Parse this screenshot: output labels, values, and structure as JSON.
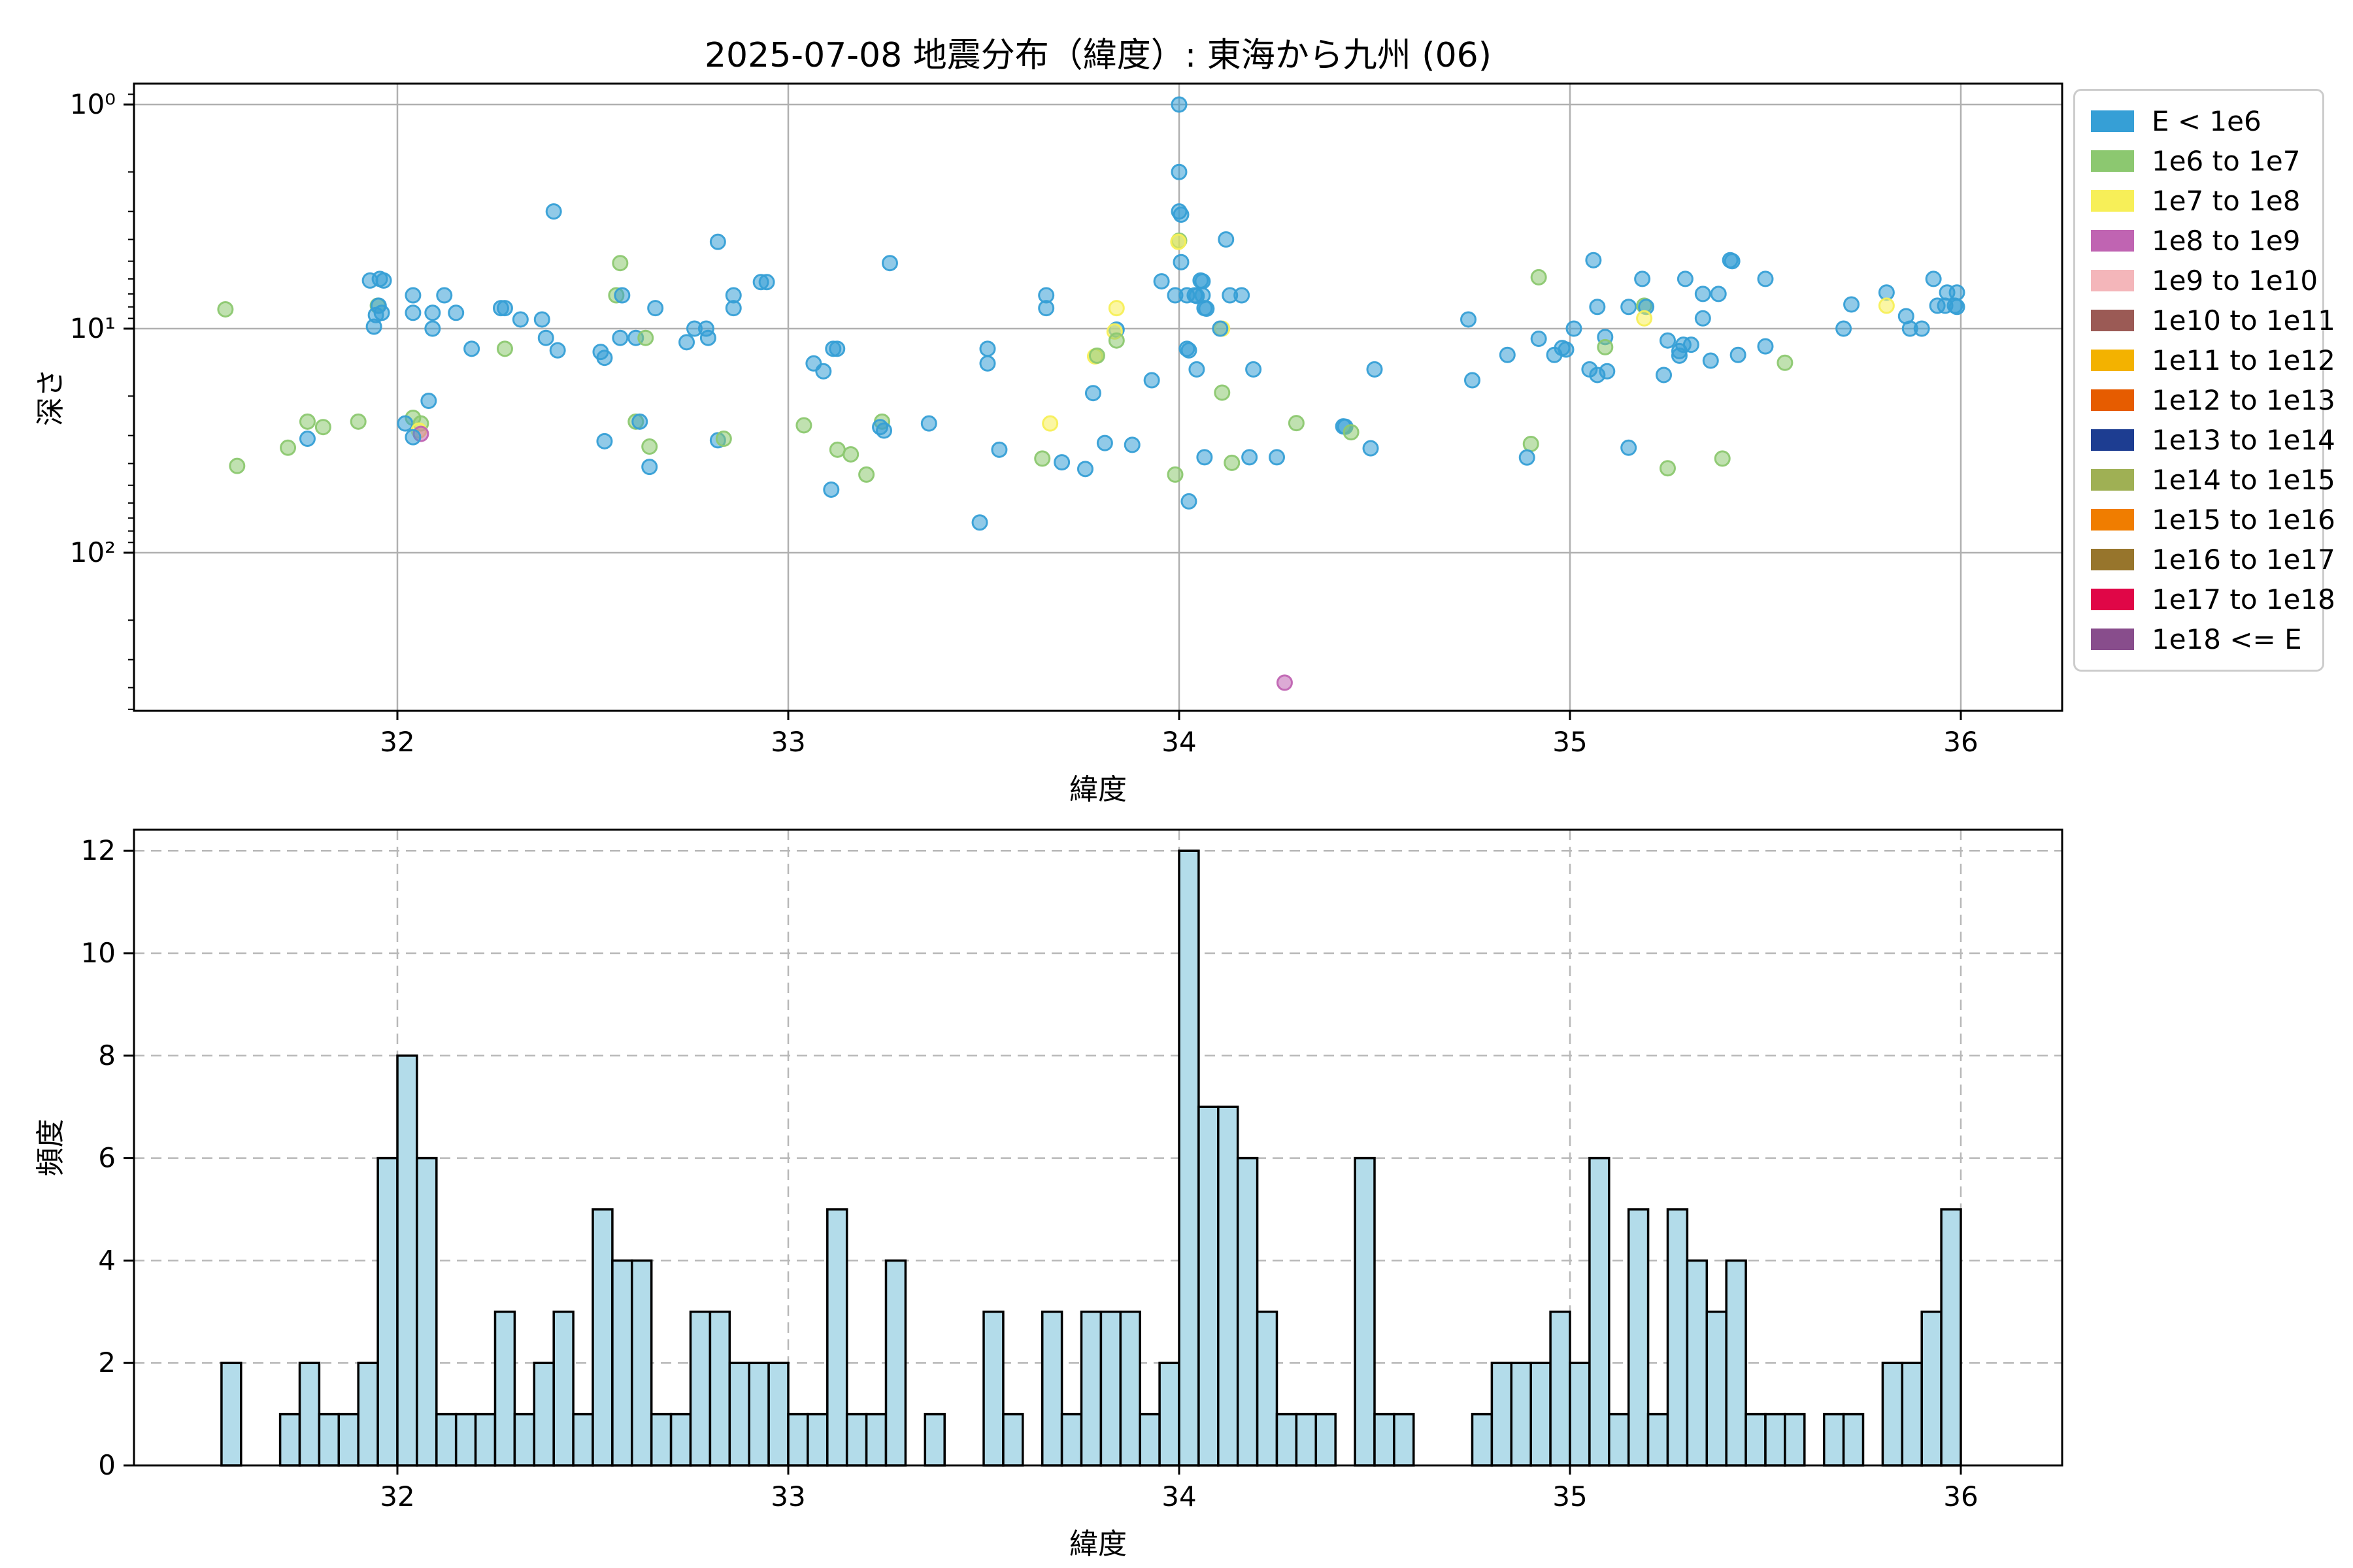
{
  "title": "2025-07-08 地震分布（緯度）: 東海から九州 (06)",
  "legend": {
    "entries": [
      {
        "label": "E < 1e6",
        "color": "#369fd6"
      },
      {
        "label": "1e6 to 1e7",
        "color": "#8cc870"
      },
      {
        "label": "1e7 to 1e8",
        "color": "#f7ef58"
      },
      {
        "label": "1e8 to 1e9",
        "color": "#c064b2"
      },
      {
        "label": "1e9 to 1e10",
        "color": "#f4b6ba"
      },
      {
        "label": "1e10 to 1e11",
        "color": "#9b5a55"
      },
      {
        "label": "1e11 to 1e12",
        "color": "#f3b200"
      },
      {
        "label": "1e12 to 1e13",
        "color": "#e65c00"
      },
      {
        "label": "1e13 to 1e14",
        "color": "#1d3d91"
      },
      {
        "label": "1e14 to 1e15",
        "color": "#9fb054"
      },
      {
        "label": "1e15 to 1e16",
        "color": "#f07d00"
      },
      {
        "label": "1e16 to 1e17",
        "color": "#97752c"
      },
      {
        "label": "1e17 to 1e18",
        "color": "#e00647"
      },
      {
        "label": "1e18 <= E",
        "color": "#884d8c"
      }
    ]
  },
  "chart_data": [
    {
      "type": "scatter",
      "xlabel": "緯度",
      "ylabel": "深さ",
      "x_ticks": [
        32,
        33,
        34,
        35,
        36
      ],
      "x_tick_labels": [
        "32",
        "33",
        "34",
        "35",
        "36"
      ],
      "xlim": [
        31.33,
        36.26
      ],
      "y_scale": "log",
      "y_inverted": true,
      "y_major_ticks": [
        1,
        10,
        100
      ],
      "y_tick_labels": [
        "10⁰",
        "10¹",
        "10²"
      ],
      "y_minor_ticks": [
        0.9,
        2,
        3,
        4,
        5,
        6,
        7,
        8,
        9,
        20,
        30,
        40,
        50,
        60,
        70,
        80,
        90,
        200,
        300,
        400,
        500
      ],
      "ylim": [
        0.8,
        506
      ],
      "grid": "solid",
      "point_categories": [
        "E < 1e6",
        "1e6 to 1e7",
        "1e7 to 1e8",
        "1e8 to 1e9"
      ],
      "points": [
        [
          31.56,
          8.2,
          1
        ],
        [
          31.59,
          41,
          1
        ],
        [
          31.72,
          34,
          1
        ],
        [
          31.77,
          31,
          0
        ],
        [
          31.77,
          26,
          1
        ],
        [
          31.81,
          27.5,
          1
        ],
        [
          31.9,
          26,
          1
        ],
        [
          31.93,
          6.1,
          0
        ],
        [
          31.955,
          6.0,
          0
        ],
        [
          31.965,
          6.1,
          0
        ],
        [
          31.95,
          7.9,
          1
        ],
        [
          31.952,
          7.9,
          0
        ],
        [
          31.96,
          8.5,
          0
        ],
        [
          31.945,
          8.7,
          0
        ],
        [
          31.94,
          9.8,
          0
        ],
        [
          32.04,
          7.1,
          0
        ],
        [
          32.12,
          7.1,
          0
        ],
        [
          32.04,
          8.5,
          0
        ],
        [
          32.09,
          8.5,
          0
        ],
        [
          32.09,
          10,
          0
        ],
        [
          32.15,
          8.5,
          0
        ],
        [
          32.08,
          21,
          0
        ],
        [
          32.04,
          25,
          1
        ],
        [
          32.02,
          26.5,
          0
        ],
        [
          32.06,
          26.5,
          1
        ],
        [
          32.055,
          28.5,
          2
        ],
        [
          32.06,
          29.5,
          3
        ],
        [
          32.04,
          30.5,
          0
        ],
        [
          32.4,
          3.0,
          0
        ],
        [
          32.82,
          4.1,
          0
        ],
        [
          32.57,
          5.1,
          1
        ],
        [
          32.56,
          7.1,
          1
        ],
        [
          32.575,
          7.1,
          0
        ],
        [
          32.93,
          6.2,
          0
        ],
        [
          32.945,
          6.2,
          0
        ],
        [
          32.86,
          7.1,
          0
        ],
        [
          32.86,
          8.1,
          0
        ],
        [
          32.66,
          8.1,
          0
        ],
        [
          32.265,
          8.1,
          0
        ],
        [
          32.275,
          8.1,
          0
        ],
        [
          32.315,
          9.1,
          0
        ],
        [
          32.37,
          9.1,
          0
        ],
        [
          32.76,
          10,
          0
        ],
        [
          32.57,
          11,
          0
        ],
        [
          32.61,
          11,
          0
        ],
        [
          32.635,
          11,
          1
        ],
        [
          32.38,
          11,
          0
        ],
        [
          32.41,
          12.5,
          0
        ],
        [
          32.52,
          12.7,
          0
        ],
        [
          32.53,
          13.5,
          0
        ],
        [
          32.74,
          11.5,
          0
        ],
        [
          32.79,
          10,
          0
        ],
        [
          32.795,
          11,
          0
        ],
        [
          32.19,
          12.3,
          0
        ],
        [
          32.275,
          12.3,
          1
        ],
        [
          32.61,
          26,
          1
        ],
        [
          32.62,
          26,
          0
        ],
        [
          32.53,
          31.8,
          0
        ],
        [
          32.645,
          33.6,
          1
        ],
        [
          32.645,
          41.4,
          0
        ],
        [
          32.82,
          31.5,
          0
        ],
        [
          32.835,
          31,
          1
        ],
        [
          33.04,
          27,
          1
        ],
        [
          33.26,
          5.1,
          0
        ],
        [
          33.66,
          7.1,
          0
        ],
        [
          33.66,
          8.1,
          0
        ],
        [
          33.84,
          8.1,
          2
        ],
        [
          33.84,
          10.1,
          0
        ],
        [
          33.835,
          10.3,
          2
        ],
        [
          33.84,
          11.3,
          1
        ],
        [
          33.115,
          12.3,
          0
        ],
        [
          33.125,
          12.3,
          0
        ],
        [
          33.065,
          14.3,
          0
        ],
        [
          33.09,
          15.5,
          0
        ],
        [
          33.51,
          12.3,
          0
        ],
        [
          33.51,
          14.3,
          0
        ],
        [
          33.785,
          13.3,
          2
        ],
        [
          33.79,
          13.2,
          1
        ],
        [
          33.78,
          19.4,
          0
        ],
        [
          33.24,
          26,
          1
        ],
        [
          33.235,
          27.5,
          0
        ],
        [
          33.245,
          28.5,
          0
        ],
        [
          33.36,
          26.5,
          0
        ],
        [
          33.67,
          26.5,
          2
        ],
        [
          33.54,
          34.7,
          0
        ],
        [
          33.126,
          34.7,
          1
        ],
        [
          33.16,
          36.4,
          1
        ],
        [
          33.2,
          44.8,
          1
        ],
        [
          33.11,
          52.3,
          0
        ],
        [
          33.65,
          38,
          1
        ],
        [
          33.7,
          39.5,
          0
        ],
        [
          33.76,
          42.3,
          0
        ],
        [
          33.81,
          32.4,
          0
        ],
        [
          33.88,
          33,
          0
        ],
        [
          33.49,
          73.3,
          0
        ],
        [
          34.0,
          1.0,
          0
        ],
        [
          34.0,
          2.0,
          0
        ],
        [
          34.0,
          3.0,
          0
        ],
        [
          34.005,
          3.1,
          0
        ],
        [
          34.0,
          4.05,
          1
        ],
        [
          33.998,
          4.1,
          2
        ],
        [
          34.005,
          5.05,
          0
        ],
        [
          34.12,
          4.0,
          0
        ],
        [
          33.955,
          6.15,
          0
        ],
        [
          34.055,
          6.1,
          0
        ],
        [
          34.06,
          6.15,
          0
        ],
        [
          33.99,
          7.1,
          0
        ],
        [
          34.02,
          7.1,
          0
        ],
        [
          34.04,
          7.1,
          0
        ],
        [
          34.045,
          7.15,
          0
        ],
        [
          34.06,
          7.1,
          0
        ],
        [
          34.13,
          7.1,
          0
        ],
        [
          34.16,
          7.1,
          0
        ],
        [
          34.065,
          8.1,
          0
        ],
        [
          34.07,
          8.15,
          0
        ],
        [
          34.74,
          9.1,
          0
        ],
        [
          34.11,
          10,
          2
        ],
        [
          34.105,
          10,
          0
        ],
        [
          34.02,
          12.3,
          0
        ],
        [
          34.025,
          12.5,
          0
        ],
        [
          34.045,
          15.2,
          0
        ],
        [
          34.19,
          15.2,
          0
        ],
        [
          33.93,
          17,
          0
        ],
        [
          34.5,
          15.2,
          0
        ],
        [
          34.75,
          17,
          0
        ],
        [
          34.11,
          19.3,
          1
        ],
        [
          34.3,
          26.4,
          1
        ],
        [
          34.42,
          27.3,
          0
        ],
        [
          34.425,
          27.4,
          0
        ],
        [
          34.44,
          29,
          1
        ],
        [
          34.49,
          34.2,
          0
        ],
        [
          34.065,
          37.5,
          0
        ],
        [
          34.135,
          39.7,
          1
        ],
        [
          34.18,
          37.5,
          0
        ],
        [
          34.25,
          37.5,
          0
        ],
        [
          33.99,
          44.8,
          1
        ],
        [
          34.025,
          59,
          0
        ],
        [
          34.27,
          380,
          3
        ],
        [
          34.92,
          5.9,
          1
        ],
        [
          35.06,
          4.95,
          0
        ],
        [
          35.41,
          4.95,
          0
        ],
        [
          35.415,
          5.0,
          0
        ],
        [
          35.185,
          6.0,
          0
        ],
        [
          35.295,
          6.0,
          0
        ],
        [
          35.5,
          6.0,
          0
        ],
        [
          35.34,
          7.0,
          0
        ],
        [
          35.38,
          7.0,
          0
        ],
        [
          35.07,
          8.0,
          0
        ],
        [
          35.15,
          8.0,
          0
        ],
        [
          35.19,
          7.9,
          1
        ],
        [
          35.195,
          8.0,
          0
        ],
        [
          35.19,
          9.0,
          2
        ],
        [
          35.34,
          9.0,
          0
        ],
        [
          35.01,
          10,
          0
        ],
        [
          34.92,
          11.1,
          0
        ],
        [
          34.84,
          13.1,
          0
        ],
        [
          34.96,
          13.1,
          0
        ],
        [
          34.98,
          12.2,
          0
        ],
        [
          34.99,
          12.4,
          0
        ],
        [
          35.09,
          10.9,
          0
        ],
        [
          35.09,
          12.1,
          1
        ],
        [
          35.05,
          15.2,
          0
        ],
        [
          35.07,
          16.1,
          0
        ],
        [
          35.095,
          15.5,
          0
        ],
        [
          35.25,
          11.3,
          0
        ],
        [
          35.28,
          12.6,
          0
        ],
        [
          35.29,
          11.8,
          0
        ],
        [
          35.31,
          11.8,
          0
        ],
        [
          35.28,
          13.2,
          0
        ],
        [
          35.24,
          16.1,
          0
        ],
        [
          35.36,
          13.9,
          0
        ],
        [
          35.43,
          13.1,
          0
        ],
        [
          35.5,
          12.0,
          0
        ],
        [
          35.55,
          14.2,
          1
        ],
        [
          34.9,
          32.7,
          1
        ],
        [
          34.89,
          37.6,
          0
        ],
        [
          35.15,
          34,
          0
        ],
        [
          35.25,
          42,
          1
        ],
        [
          35.39,
          38,
          1
        ],
        [
          35.7,
          10,
          0
        ],
        [
          35.72,
          7.8,
          0
        ],
        [
          35.81,
          6.9,
          0
        ],
        [
          35.81,
          7.9,
          2
        ],
        [
          35.86,
          8.8,
          0
        ],
        [
          35.87,
          10,
          0
        ],
        [
          35.9,
          10,
          0
        ],
        [
          35.93,
          6.0,
          0
        ],
        [
          35.965,
          6.9,
          0
        ],
        [
          35.99,
          6.9,
          0
        ],
        [
          35.94,
          7.9,
          0
        ],
        [
          35.96,
          7.9,
          0
        ],
        [
          35.985,
          7.9,
          0
        ],
        [
          35.99,
          8.0,
          0
        ]
      ]
    },
    {
      "type": "bar",
      "subtype": "histogram",
      "xlabel": "緯度",
      "ylabel": "頻度",
      "x_ticks": [
        32,
        33,
        34,
        35,
        36
      ],
      "x_tick_labels": [
        "32",
        "33",
        "34",
        "35",
        "36"
      ],
      "y_ticks": [
        0,
        2,
        4,
        6,
        8,
        10,
        12
      ],
      "ylim": [
        0,
        12.4
      ],
      "grid": "dashed",
      "bar_color": "#b3dcea",
      "bar_edge_color": "#000000",
      "bin_start": 31.55,
      "bin_width": 0.05,
      "counts": [
        2,
        0,
        0,
        1,
        2,
        1,
        1,
        2,
        6,
        8,
        6,
        1,
        1,
        1,
        3,
        1,
        2,
        3,
        1,
        5,
        4,
        4,
        1,
        1,
        3,
        3,
        2,
        2,
        2,
        1,
        1,
        5,
        1,
        1,
        4,
        0,
        1,
        0,
        0,
        3,
        1,
        0,
        3,
        1,
        3,
        3,
        3,
        1,
        2,
        12,
        7,
        7,
        6,
        3,
        1,
        1,
        1,
        0,
        6,
        1,
        1,
        0,
        0,
        0,
        1,
        2,
        2,
        2,
        3,
        2,
        6,
        1,
        5,
        1,
        5,
        4,
        3,
        4,
        1,
        1,
        1,
        0,
        1,
        1,
        0,
        2,
        2,
        3,
        5
      ]
    }
  ]
}
